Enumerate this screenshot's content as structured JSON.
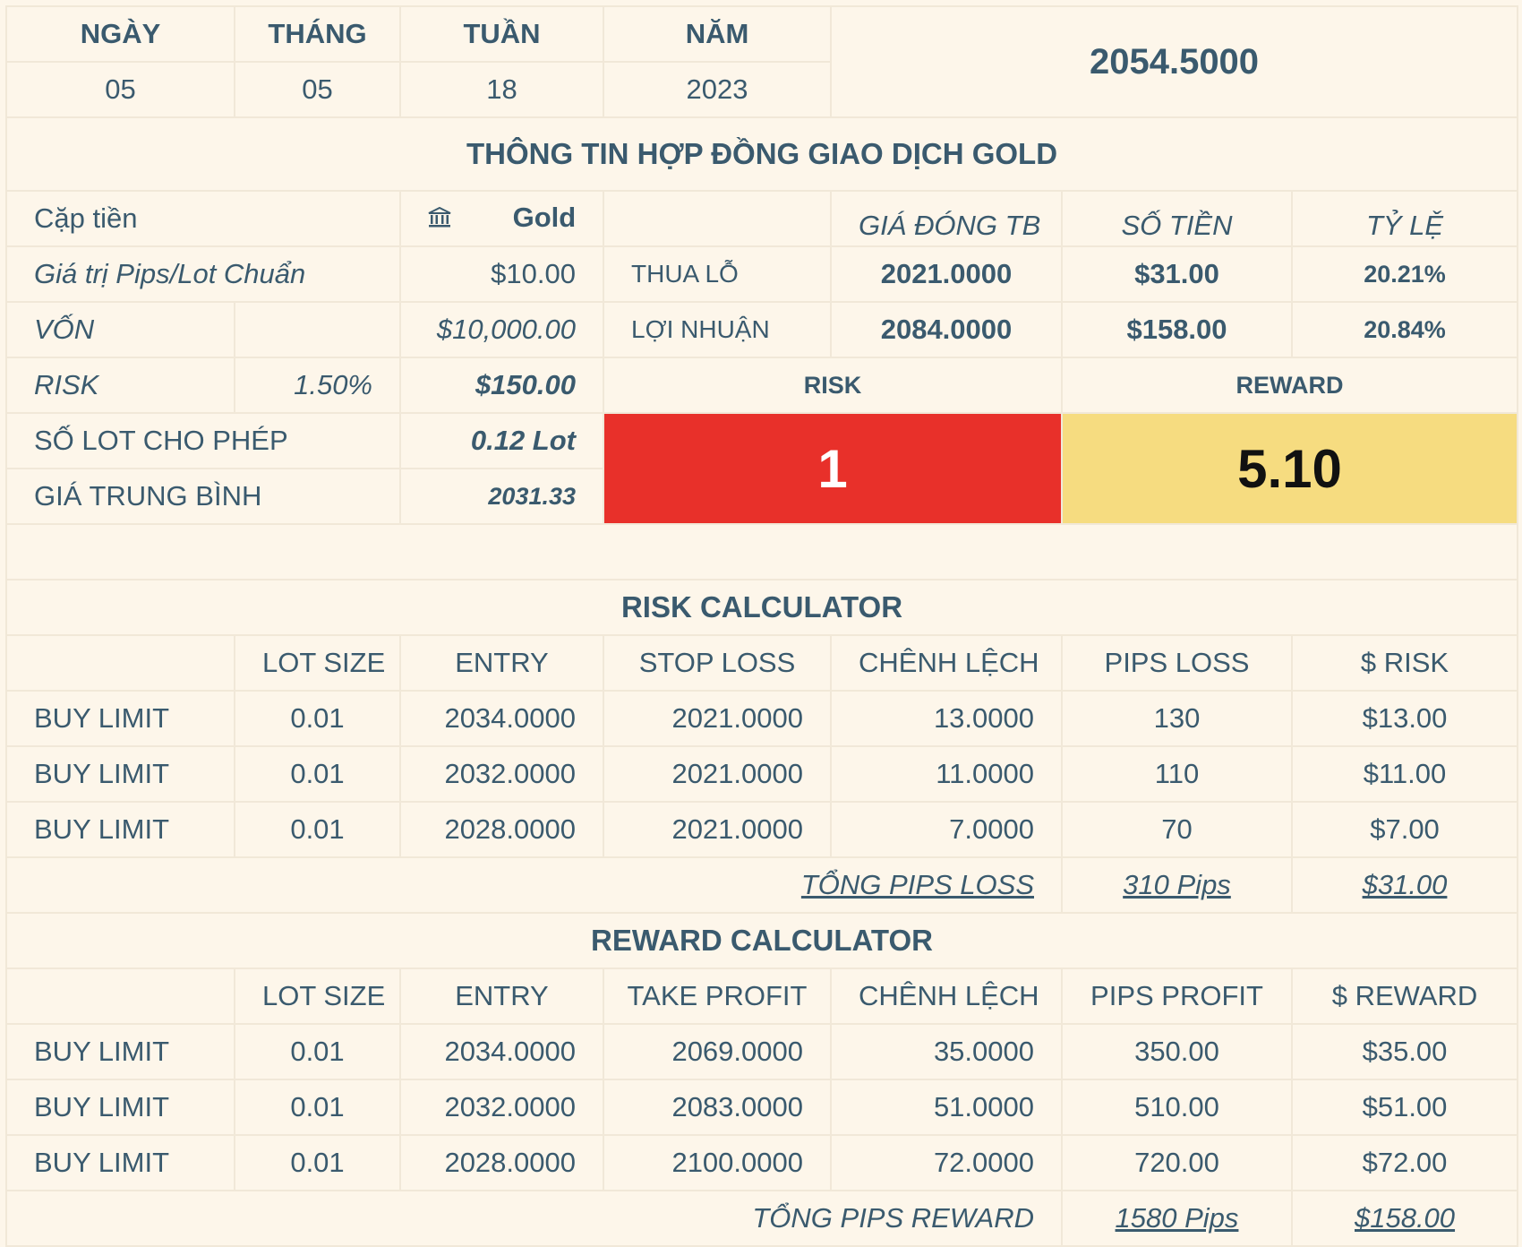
{
  "date": {
    "labels": [
      "NGÀY",
      "THÁNG",
      "TUẦN",
      "NĂM"
    ],
    "values": [
      "05",
      "05",
      "18",
      "2023"
    ],
    "price": "2054.5000"
  },
  "contract": {
    "title": "THÔNG TIN HỢP ĐỒNG GIAO DỊCH GOLD",
    "pair_label": "Cặp tiền",
    "pair_icon": "bank-icon",
    "pair_value": "Gold",
    "pip_label": "Giá trị Pips/Lot Chuẩn",
    "pip_value": "$10.00",
    "capital_label": "VỐN",
    "capital_value": "$10,000.00",
    "risk_label": "RISK",
    "risk_pct": "1.50%",
    "risk_value": "$150.00",
    "lots_label": "SỐ LOT CHO PHÉP",
    "lots_value": "0.12 Lot",
    "avg_label": "GIÁ TRUNG BÌNH",
    "avg_value": "2031.33"
  },
  "summary": {
    "col_headers": [
      "GIÁ ĐÓNG TB",
      "SỐ TIỀN",
      "TỶ LỆ"
    ],
    "loss": {
      "label": "THUA LỖ",
      "price": "2021.0000",
      "amount": "$31.00",
      "ratio": "20.21%"
    },
    "profit": {
      "label": "LỢI NHUẬN",
      "price": "2084.0000",
      "amount": "$158.00",
      "ratio": "20.84%"
    },
    "risk_label": "RISK",
    "reward_label": "REWARD",
    "risk_value": "1",
    "reward_value": "5.10",
    "colors": {
      "risk": "#e8302a",
      "reward": "#f6dc80",
      "loss_text": "#e03224",
      "profit_text": "#e08a37"
    }
  },
  "risk_calc": {
    "title": "RISK CALCULATOR",
    "headers": [
      "",
      "LOT SIZE",
      "ENTRY",
      "STOP LOSS",
      "CHÊNH LỆCH",
      "PIPS LOSS",
      "$ RISK"
    ],
    "rows": [
      [
        "BUY LIMIT",
        "0.01",
        "2034.0000",
        "2021.0000",
        "13.0000",
        "130",
        "$13.00"
      ],
      [
        "BUY LIMIT",
        "0.01",
        "2032.0000",
        "2021.0000",
        "11.0000",
        "110",
        "$11.00"
      ],
      [
        "BUY LIMIT",
        "0.01",
        "2028.0000",
        "2021.0000",
        "7.0000",
        "70",
        "$7.00"
      ]
    ],
    "total_label": "TỔNG PIPS LOSS",
    "total_pips": "310 Pips",
    "total_amount": "$31.00"
  },
  "reward_calc": {
    "title": "REWARD CALCULATOR",
    "headers": [
      "",
      "LOT SIZE",
      "ENTRY",
      "TAKE PROFIT",
      "CHÊNH LỆCH",
      "PIPS PROFIT",
      "$ REWARD"
    ],
    "rows": [
      [
        "BUY LIMIT",
        "0.01",
        "2034.0000",
        "2069.0000",
        "35.0000",
        "350.00",
        "$35.00"
      ],
      [
        "BUY LIMIT",
        "0.01",
        "2032.0000",
        "2083.0000",
        "51.0000",
        "510.00",
        "$51.00"
      ],
      [
        "BUY LIMIT",
        "0.01",
        "2028.0000",
        "2100.0000",
        "72.0000",
        "720.00",
        "$72.00"
      ]
    ],
    "total_label": "TỔNG PIPS REWARD",
    "total_pips": "1580 Pips",
    "total_amount": "$158.00"
  }
}
